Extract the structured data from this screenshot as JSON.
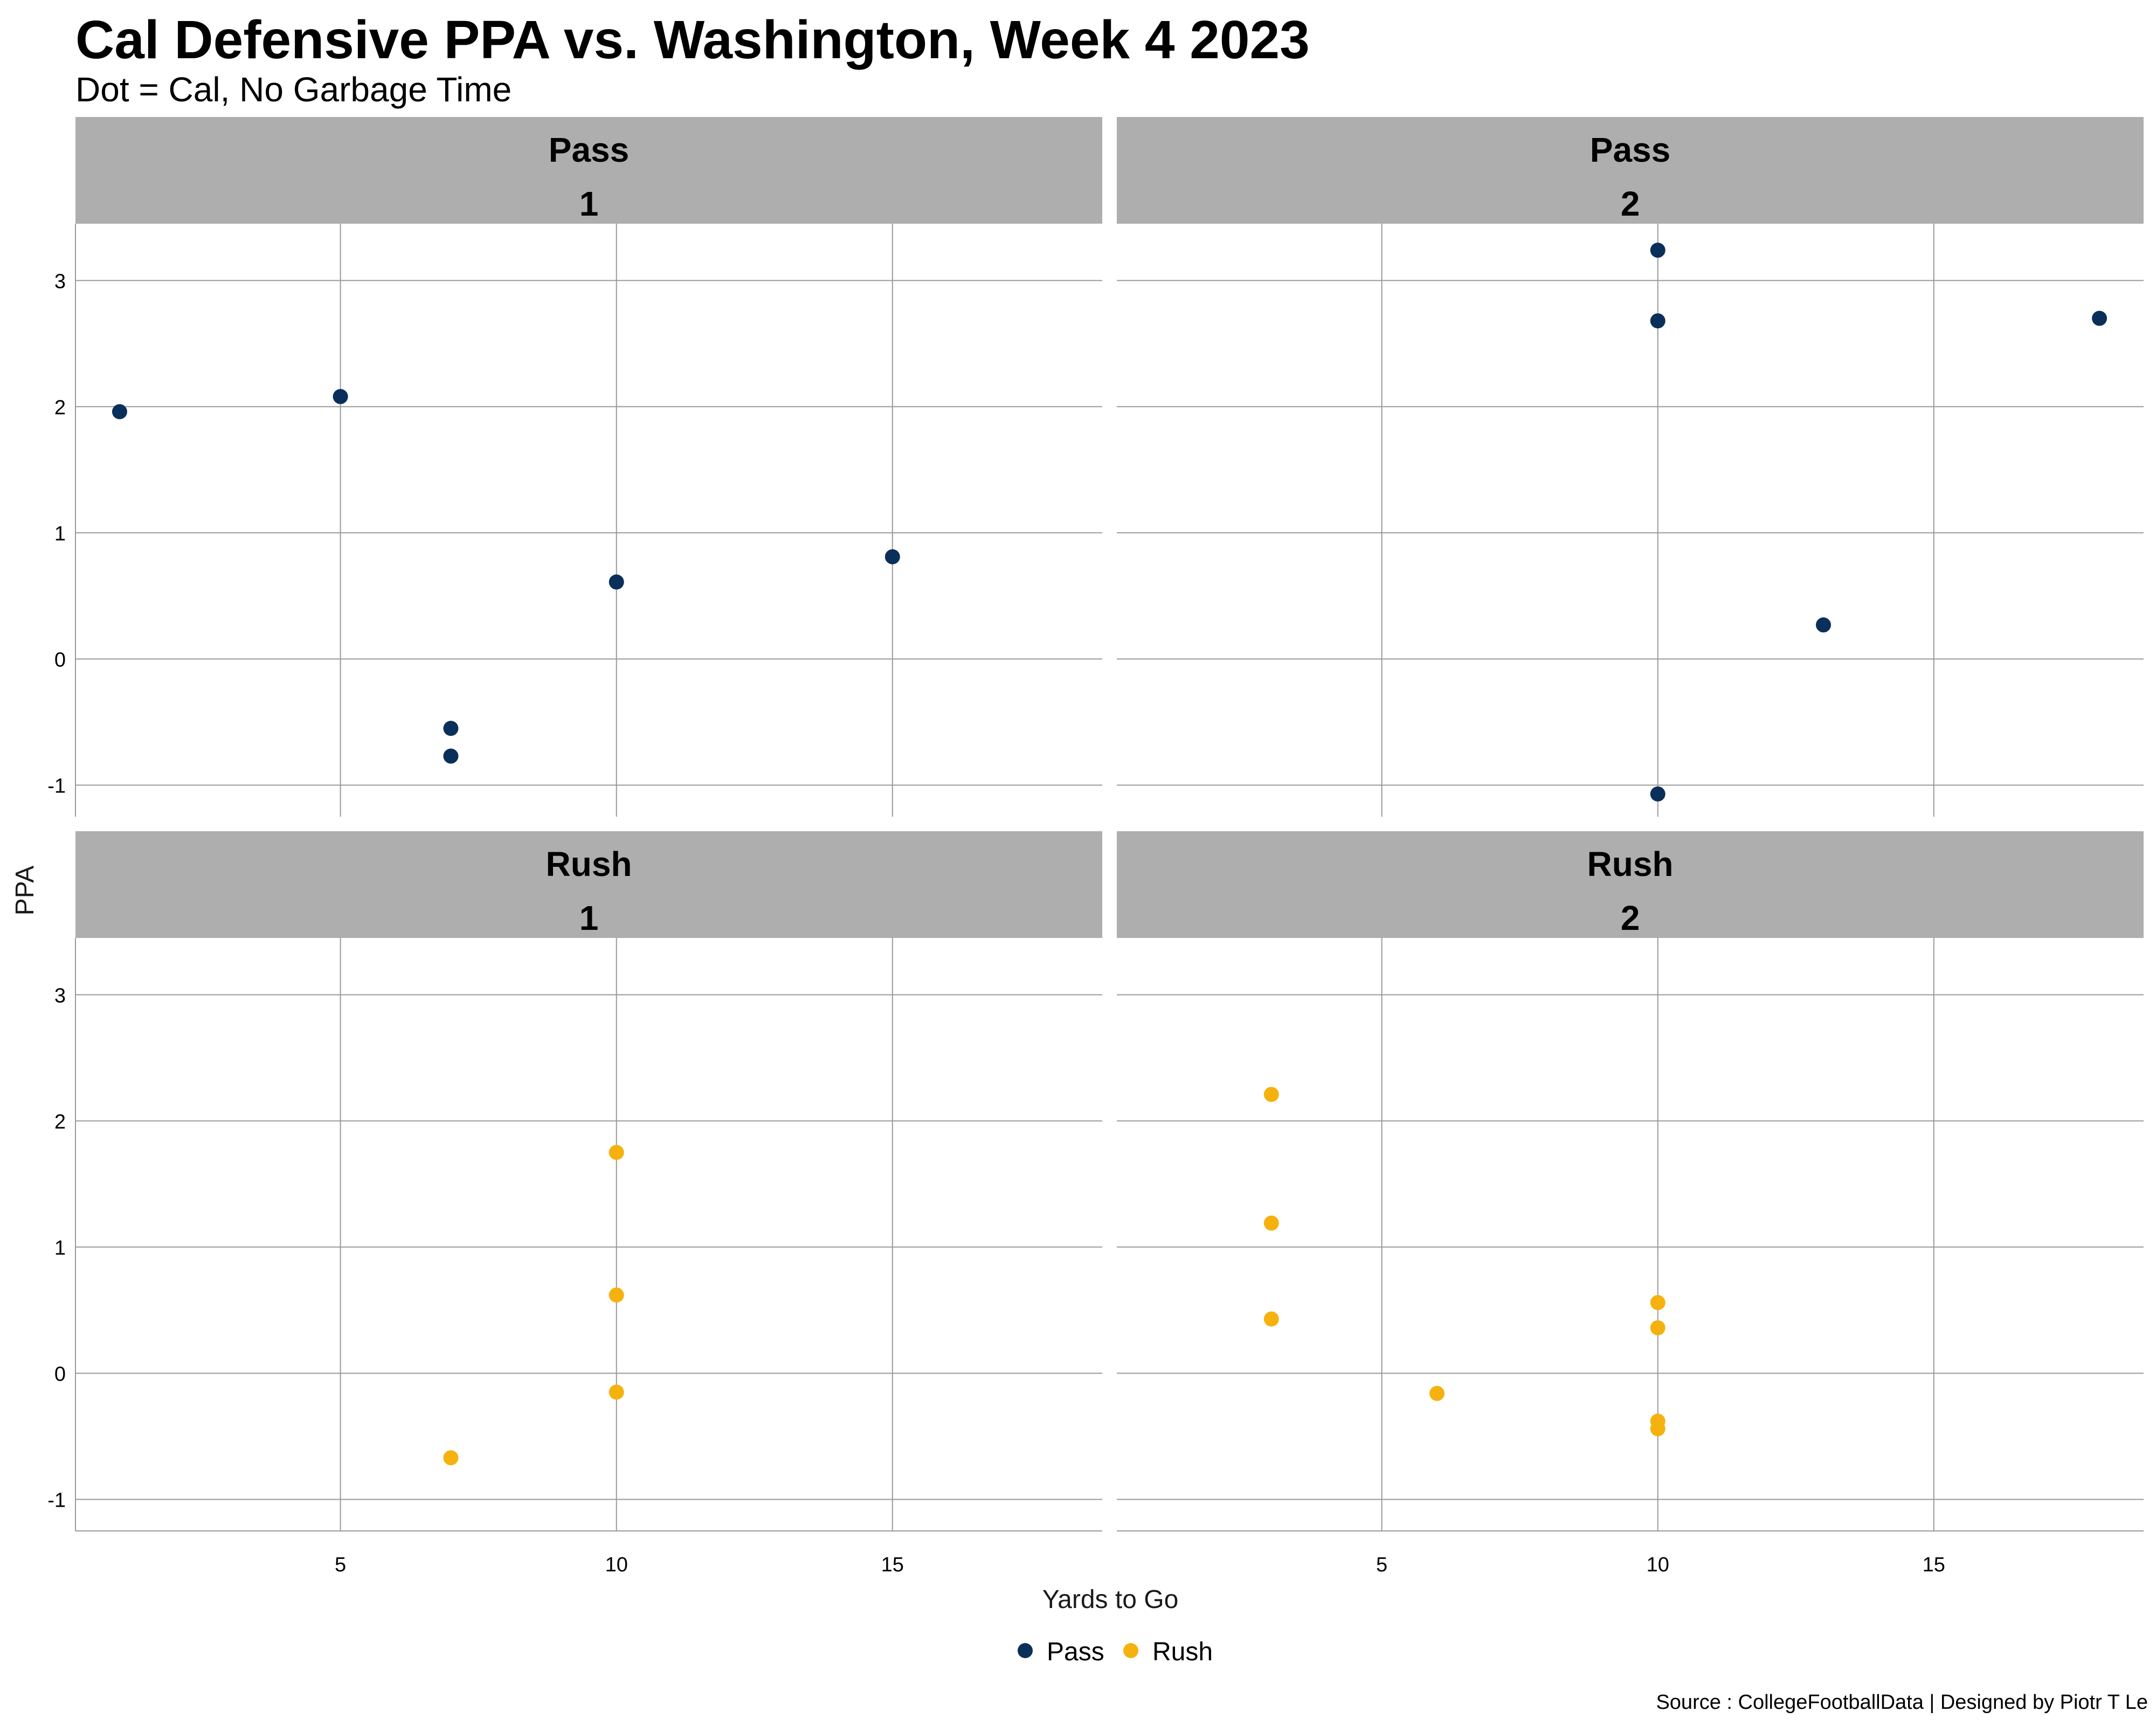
{
  "title": "Cal Defensive PPA vs. Washington, Week 4 2023",
  "subtitle": "Dot = Cal, No Garbage Time",
  "caption": "Source : CollegeFootballData | Designed by Piotr T Le",
  "chart_data": {
    "type": "scatter",
    "title": "Cal Defensive PPA vs. Washington, Week 4 2023",
    "subtitle": "Dot = Cal, No Garbage Time",
    "xlabel": "Yards to Go",
    "ylabel": "PPA",
    "xlim": [
      0.2,
      18.8
    ],
    "ylim": [
      -1.25,
      3.45
    ],
    "x_ticks": [
      5,
      10,
      15
    ],
    "y_ticks": [
      -1,
      0,
      1,
      2,
      3
    ],
    "grid": true,
    "legend": {
      "position": "bottom",
      "entries": [
        {
          "name": "Pass",
          "color": "#0a2f5a"
        },
        {
          "name": "Rush",
          "color": "#f5b20f"
        }
      ]
    },
    "panels": [
      {
        "play_type": "Pass",
        "down": "1",
        "color": "#0a2f5a",
        "points": [
          {
            "x": 1,
            "y": 1.96
          },
          {
            "x": 5,
            "y": 2.08
          },
          {
            "x": 7,
            "y": -0.55
          },
          {
            "x": 7,
            "y": -0.77
          },
          {
            "x": 10,
            "y": 0.61
          },
          {
            "x": 15,
            "y": 0.81
          }
        ]
      },
      {
        "play_type": "Pass",
        "down": "2",
        "color": "#0a2f5a",
        "points": [
          {
            "x": 10,
            "y": 3.24
          },
          {
            "x": 10,
            "y": 2.68
          },
          {
            "x": 10,
            "y": -1.07
          },
          {
            "x": 13,
            "y": 0.27
          },
          {
            "x": 18,
            "y": 2.7
          }
        ]
      },
      {
        "play_type": "Rush",
        "down": "1",
        "color": "#f5b20f",
        "points": [
          {
            "x": 7,
            "y": -0.67
          },
          {
            "x": 10,
            "y": 1.75
          },
          {
            "x": 10,
            "y": 0.62
          },
          {
            "x": 10,
            "y": -0.15
          }
        ]
      },
      {
        "play_type": "Rush",
        "down": "2",
        "color": "#f5b20f",
        "points": [
          {
            "x": 3,
            "y": 2.21
          },
          {
            "x": 3,
            "y": 1.19
          },
          {
            "x": 3,
            "y": 0.43
          },
          {
            "x": 6,
            "y": -0.16
          },
          {
            "x": 10,
            "y": 0.56
          },
          {
            "x": 10,
            "y": 0.36
          },
          {
            "x": 10,
            "y": -0.38
          },
          {
            "x": 10,
            "y": -0.44
          }
        ]
      }
    ]
  }
}
